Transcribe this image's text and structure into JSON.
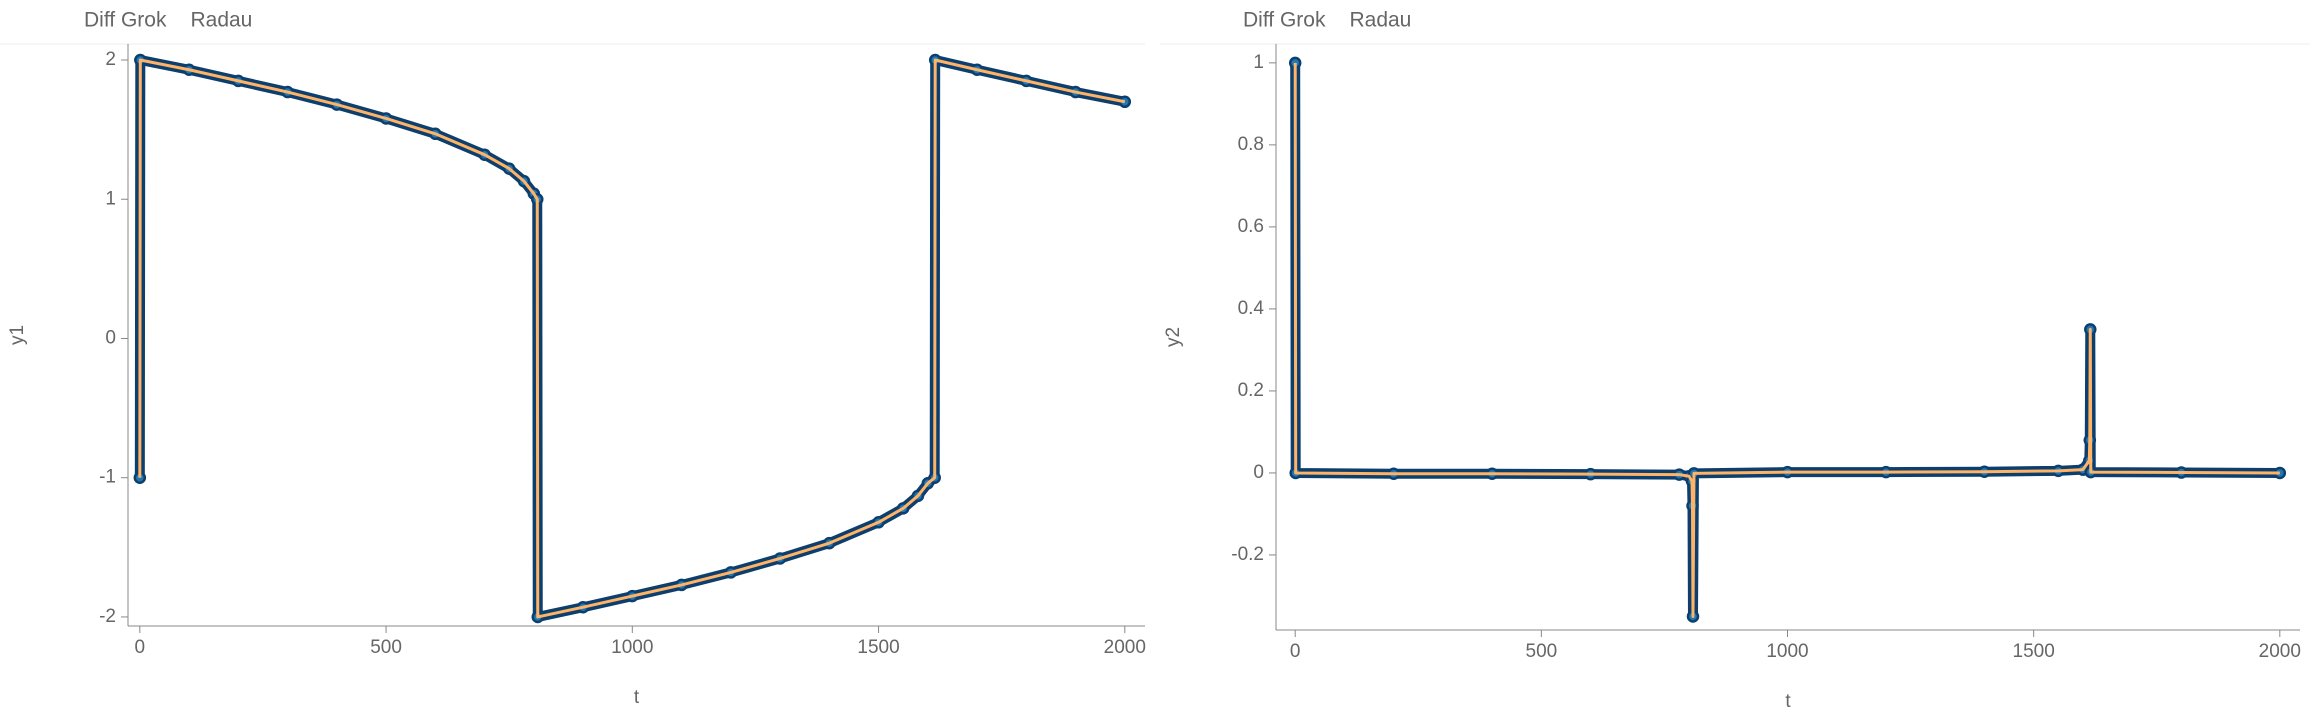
{
  "chart_data": [
    {
      "type": "line",
      "x_label": "t",
      "y_label": "y1",
      "x": [
        0,
        1,
        100,
        200,
        300,
        400,
        500,
        600,
        700,
        750,
        780,
        800,
        807,
        808,
        900,
        1000,
        1100,
        1200,
        1300,
        1400,
        1500,
        1550,
        1580,
        1600,
        1614,
        1615,
        1700,
        1800,
        1900,
        2000
      ],
      "series": [
        {
          "name": "Diff Grok",
          "color": "#1f77b4",
          "values": [
            -1,
            2,
            1.93,
            1.85,
            1.77,
            1.68,
            1.58,
            1.47,
            1.32,
            1.22,
            1.13,
            1.04,
            1.0,
            -2,
            -1.93,
            -1.85,
            -1.77,
            -1.68,
            -1.58,
            -1.47,
            -1.32,
            -1.22,
            -1.13,
            -1.04,
            -1.0,
            2,
            1.93,
            1.85,
            1.77,
            1.7
          ]
        },
        {
          "name": "Radau",
          "color": "#ffb366",
          "values": [
            -1,
            2,
            1.93,
            1.85,
            1.77,
            1.68,
            1.58,
            1.47,
            1.32,
            1.22,
            1.13,
            1.04,
            1.0,
            -2,
            -1.93,
            -1.85,
            -1.77,
            -1.68,
            -1.58,
            -1.47,
            -1.32,
            -1.22,
            -1.13,
            -1.04,
            -1.0,
            2,
            1.93,
            1.85,
            1.77,
            1.7
          ]
        }
      ],
      "xlim": [
        -24,
        2041
      ],
      "ylim": [
        -2.065,
        2.115
      ],
      "xticks": [
        0,
        500,
        1000,
        1500,
        2000
      ],
      "yticks": [
        -2,
        -1,
        0,
        1,
        2
      ]
    },
    {
      "type": "line",
      "x_label": "t",
      "y_label": "y2",
      "x": [
        0,
        1,
        200,
        400,
        600,
        780,
        800,
        806,
        807,
        808,
        810,
        1000,
        1200,
        1400,
        1550,
        1600,
        1613,
        1614,
        1615,
        1616,
        1800,
        2000
      ],
      "series": [
        {
          "name": "Diff Grok",
          "color": "#1f77b4",
          "values": [
            1,
            0,
            -0.002,
            -0.002,
            -0.003,
            -0.004,
            -0.008,
            -0.02,
            -0.08,
            -0.35,
            -0.001,
            0.002,
            0.002,
            0.003,
            0.005,
            0.008,
            0.03,
            0.08,
            0.35,
            0.002,
            0.001,
            0
          ]
        },
        {
          "name": "Radau",
          "color": "#ffb366",
          "values": [
            1,
            0,
            -0.002,
            -0.002,
            -0.003,
            -0.004,
            -0.008,
            -0.02,
            -0.08,
            -0.35,
            -0.001,
            0.002,
            0.002,
            0.003,
            0.005,
            0.008,
            0.03,
            0.08,
            0.35,
            0.002,
            0.001,
            0
          ]
        }
      ],
      "xlim": [
        -39,
        2041
      ],
      "ylim": [
        -0.383,
        1.046
      ],
      "xticks": [
        0,
        500,
        1000,
        1500,
        2000
      ],
      "yticks": [
        -0.2,
        0,
        0.2,
        0.4,
        0.6,
        0.8,
        1
      ]
    }
  ]
}
